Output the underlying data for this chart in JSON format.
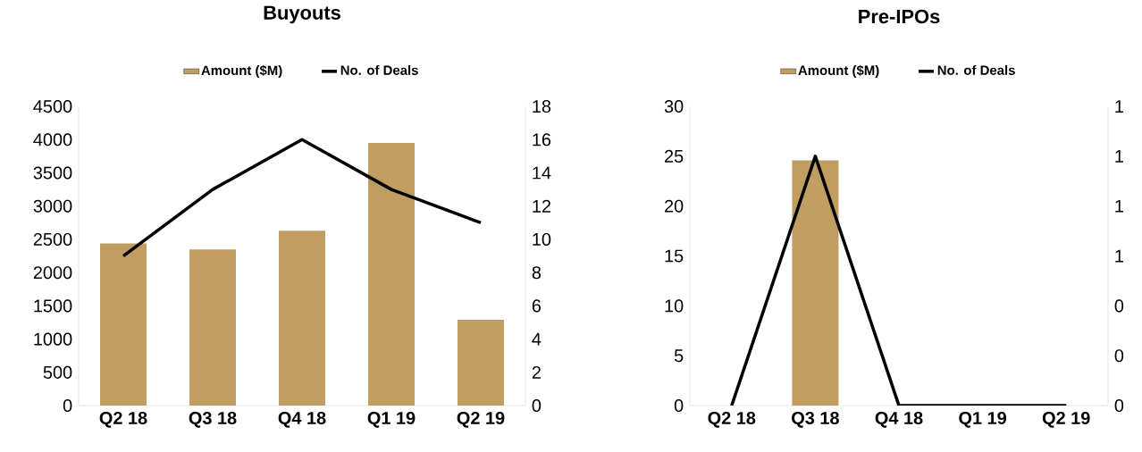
{
  "chart_data": [
    {
      "type": "bar",
      "title": "Buyouts",
      "categories": [
        "Q2 18",
        "Q3 18",
        "Q4 18",
        "Q1 19",
        "Q2 19"
      ],
      "series": [
        {
          "name": "Amount ($M)",
          "color": "#c09e62",
          "values": [
            2440,
            2350,
            2630,
            3950,
            1290
          ]
        },
        {
          "name": "No. of Deals",
          "type": "line",
          "axis": "y2",
          "color": "#000000",
          "values": [
            9,
            13,
            16,
            13,
            11
          ]
        }
      ],
      "ylim": [
        0,
        4500
      ],
      "yticks": [
        0,
        500,
        1000,
        1500,
        2000,
        2500,
        3000,
        3500,
        4000,
        4500
      ],
      "y2lim": [
        0,
        18
      ],
      "y2ticks": [
        0,
        2,
        4,
        6,
        8,
        10,
        12,
        14,
        16,
        18
      ],
      "legend": "top"
    },
    {
      "type": "bar",
      "title": "Pre-IPOs",
      "categories": [
        "Q2 18",
        "Q3 18",
        "Q4 18",
        "Q1 19",
        "Q2 19"
      ],
      "series": [
        {
          "name": "Amount ($M)",
          "color": "#c09e62",
          "values": [
            null,
            24.6,
            null,
            null,
            null
          ]
        },
        {
          "name": "No. of Deals",
          "type": "line",
          "axis": "y2",
          "color": "#000000",
          "values": [
            0,
            1,
            0,
            0,
            0
          ]
        }
      ],
      "ylim": [
        0,
        30
      ],
      "yticks": [
        0,
        5,
        10,
        15,
        20,
        25,
        30
      ],
      "y2lim": [
        0,
        1.2
      ],
      "y2ticks": [
        0,
        {
          "value": 0.2,
          "label": "0"
        },
        {
          "value": 0.4,
          "label": "0"
        },
        {
          "value": 0.6,
          "label": "1"
        },
        {
          "value": 0.8,
          "label": "1"
        },
        {
          "value": 1.0,
          "label": "1"
        },
        {
          "value": 1.2,
          "label": "1"
        }
      ],
      "legend": "top"
    }
  ]
}
